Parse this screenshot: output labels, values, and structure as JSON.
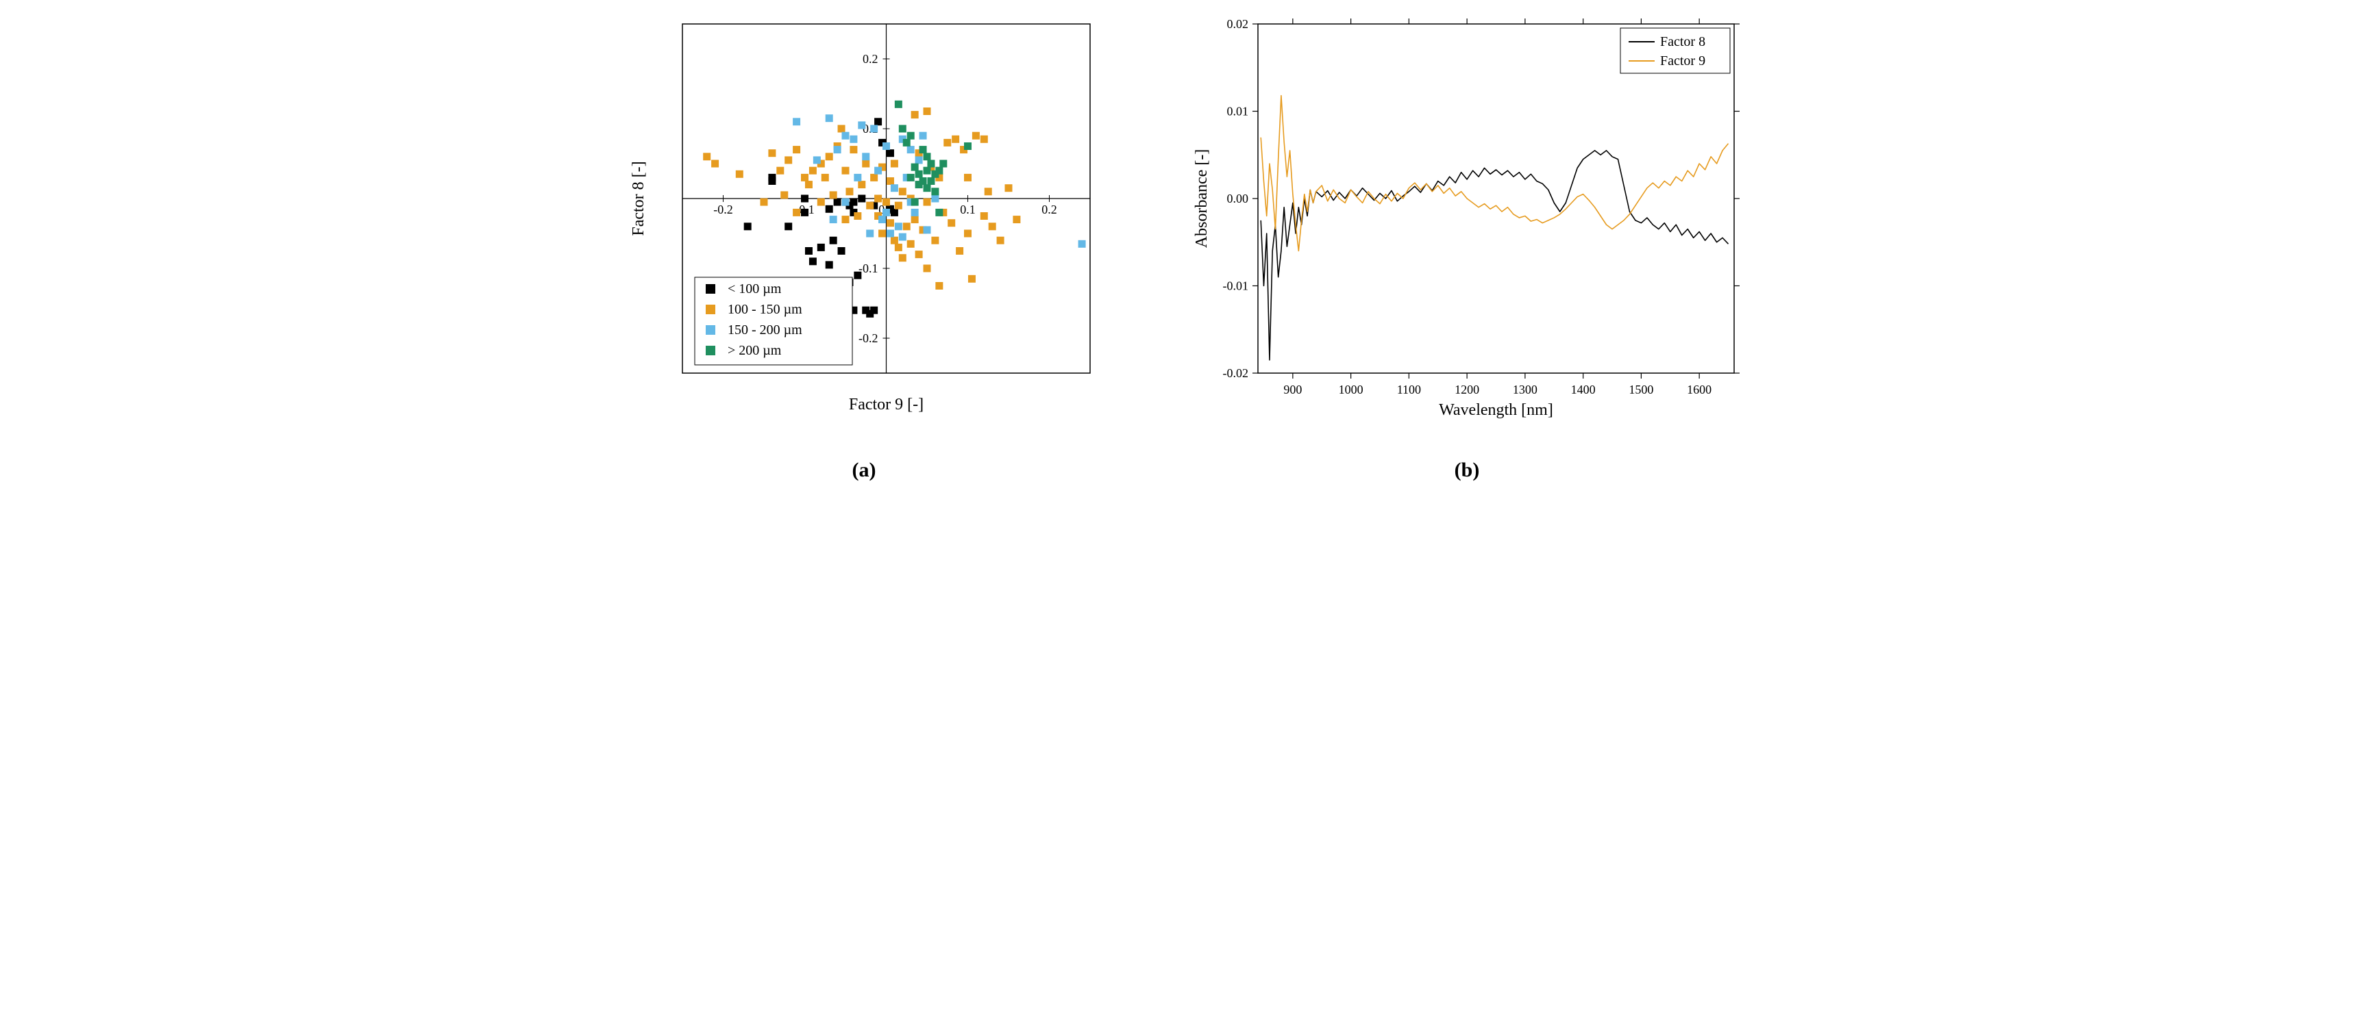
{
  "scatter": {
    "type": "scatter",
    "xlabel": "Factor 9 [-]",
    "ylabel": "Factor 8 [-]",
    "label_fontsize": 24,
    "tick_fontsize": 18,
    "font_family": "serif",
    "background_color": "#ffffff",
    "border_color": "#000000",
    "xlim": [
      -0.25,
      0.25
    ],
    "ylim": [
      -0.25,
      0.25
    ],
    "xticks": [
      -0.2,
      -0.1,
      0.0,
      0.1,
      0.2
    ],
    "yticks": [
      -0.2,
      -0.1,
      0.0,
      0.1,
      0.2
    ],
    "marker_size": 11,
    "panel_label": "(a)",
    "legend": {
      "position": "lower-left",
      "font_size": 20,
      "items": [
        {
          "label": "< 100 µm",
          "color": "#000000"
        },
        {
          "label": "100 - 150 µm",
          "color": "#e69b1f"
        },
        {
          "label": "150 - 200 µm",
          "color": "#63b8e6"
        },
        {
          "label": "> 200 µm",
          "color": "#1f8f5f"
        }
      ]
    },
    "series": [
      {
        "name": "< 100 µm",
        "color": "#000000",
        "points": [
          [
            -0.17,
            -0.04
          ],
          [
            -0.14,
            0.03
          ],
          [
            -0.14,
            0.025
          ],
          [
            -0.12,
            -0.04
          ],
          [
            -0.1,
            0.0
          ],
          [
            -0.1,
            -0.02
          ],
          [
            -0.095,
            -0.075
          ],
          [
            -0.09,
            -0.09
          ],
          [
            -0.08,
            -0.07
          ],
          [
            -0.07,
            -0.095
          ],
          [
            -0.07,
            -0.015
          ],
          [
            -0.065,
            -0.06
          ],
          [
            -0.06,
            -0.005
          ],
          [
            -0.06,
            -0.13
          ],
          [
            -0.055,
            -0.075
          ],
          [
            -0.05,
            -0.005
          ],
          [
            -0.045,
            -0.12
          ],
          [
            -0.04,
            -0.16
          ],
          [
            -0.04,
            -0.005
          ],
          [
            -0.035,
            -0.11
          ],
          [
            -0.03,
            0.0
          ],
          [
            -0.025,
            -0.16
          ],
          [
            -0.02,
            -0.165
          ],
          [
            -0.015,
            -0.16
          ],
          [
            -0.015,
            -0.01
          ],
          [
            -0.01,
            0.11
          ],
          [
            -0.005,
            0.08
          ],
          [
            0.005,
            -0.015
          ],
          [
            0.01,
            -0.02
          ],
          [
            0.005,
            0.065
          ],
          [
            -0.04,
            -0.02
          ],
          [
            -0.045,
            -0.01
          ]
        ]
      },
      {
        "name": "100 - 150 µm",
        "color": "#e69b1f",
        "points": [
          [
            -0.22,
            0.06
          ],
          [
            -0.21,
            0.05
          ],
          [
            -0.18,
            0.035
          ],
          [
            -0.15,
            -0.005
          ],
          [
            -0.14,
            0.065
          ],
          [
            -0.13,
            0.04
          ],
          [
            -0.125,
            0.005
          ],
          [
            -0.12,
            0.055
          ],
          [
            -0.11,
            0.07
          ],
          [
            -0.11,
            -0.02
          ],
          [
            -0.1,
            0.03
          ],
          [
            -0.095,
            0.02
          ],
          [
            -0.09,
            0.04
          ],
          [
            -0.08,
            0.05
          ],
          [
            -0.08,
            -0.005
          ],
          [
            -0.075,
            0.03
          ],
          [
            -0.07,
            0.06
          ],
          [
            -0.065,
            0.005
          ],
          [
            -0.06,
            0.075
          ],
          [
            -0.055,
            0.1
          ],
          [
            -0.05,
            0.04
          ],
          [
            -0.05,
            -0.03
          ],
          [
            -0.045,
            0.01
          ],
          [
            -0.04,
            0.07
          ],
          [
            -0.035,
            -0.025
          ],
          [
            -0.03,
            0.02
          ],
          [
            -0.025,
            0.05
          ],
          [
            -0.02,
            -0.01
          ],
          [
            -0.015,
            0.03
          ],
          [
            -0.01,
            0.0
          ],
          [
            -0.01,
            -0.025
          ],
          [
            -0.005,
            0.045
          ],
          [
            -0.005,
            -0.05
          ],
          [
            0.0,
            -0.005
          ],
          [
            0.005,
            0.025
          ],
          [
            0.005,
            -0.035
          ],
          [
            0.01,
            -0.06
          ],
          [
            0.01,
            0.05
          ],
          [
            0.015,
            -0.01
          ],
          [
            0.015,
            -0.07
          ],
          [
            0.02,
            0.01
          ],
          [
            0.02,
            -0.085
          ],
          [
            0.025,
            -0.04
          ],
          [
            0.03,
            0.0
          ],
          [
            0.03,
            -0.065
          ],
          [
            0.035,
            0.12
          ],
          [
            0.035,
            -0.03
          ],
          [
            0.04,
            -0.08
          ],
          [
            0.04,
            0.065
          ],
          [
            0.045,
            -0.045
          ],
          [
            0.05,
            0.125
          ],
          [
            0.05,
            -0.005
          ],
          [
            0.05,
            -0.1
          ],
          [
            0.055,
            0.045
          ],
          [
            0.06,
            -0.06
          ],
          [
            0.065,
            0.03
          ],
          [
            0.065,
            -0.125
          ],
          [
            0.07,
            -0.02
          ],
          [
            0.075,
            0.08
          ],
          [
            0.08,
            -0.035
          ],
          [
            0.085,
            0.085
          ],
          [
            0.09,
            -0.075
          ],
          [
            0.095,
            0.07
          ],
          [
            0.1,
            -0.05
          ],
          [
            0.1,
            0.03
          ],
          [
            0.105,
            -0.115
          ],
          [
            0.11,
            0.09
          ],
          [
            0.12,
            -0.025
          ],
          [
            0.12,
            0.085
          ],
          [
            0.125,
            0.01
          ],
          [
            0.13,
            -0.04
          ],
          [
            0.14,
            -0.06
          ],
          [
            0.15,
            0.015
          ],
          [
            0.16,
            -0.03
          ]
        ]
      },
      {
        "name": "150 - 200 µm",
        "color": "#63b8e6",
        "points": [
          [
            -0.11,
            0.11
          ],
          [
            -0.085,
            0.055
          ],
          [
            -0.07,
            0.115
          ],
          [
            -0.065,
            -0.03
          ],
          [
            -0.06,
            0.07
          ],
          [
            -0.05,
            0.09
          ],
          [
            -0.05,
            -0.005
          ],
          [
            -0.04,
            0.085
          ],
          [
            -0.035,
            0.03
          ],
          [
            -0.03,
            0.105
          ],
          [
            -0.025,
            0.06
          ],
          [
            -0.02,
            -0.05
          ],
          [
            -0.015,
            0.1
          ],
          [
            -0.01,
            0.04
          ],
          [
            -0.005,
            -0.03
          ],
          [
            0.0,
            -0.02
          ],
          [
            0.0,
            0.075
          ],
          [
            0.005,
            -0.05
          ],
          [
            0.01,
            0.015
          ],
          [
            0.015,
            -0.04
          ],
          [
            0.02,
            0.085
          ],
          [
            0.02,
            -0.055
          ],
          [
            0.025,
            0.03
          ],
          [
            0.03,
            -0.005
          ],
          [
            0.03,
            0.07
          ],
          [
            0.035,
            -0.02
          ],
          [
            0.04,
            0.055
          ],
          [
            0.045,
            0.09
          ],
          [
            0.05,
            -0.045
          ],
          [
            0.06,
            0.0
          ],
          [
            0.24,
            -0.065
          ]
        ]
      },
      {
        "name": "> 200 µm",
        "color": "#1f8f5f",
        "points": [
          [
            0.015,
            0.135
          ],
          [
            0.02,
            0.1
          ],
          [
            0.025,
            0.08
          ],
          [
            0.03,
            0.03
          ],
          [
            0.03,
            0.09
          ],
          [
            0.035,
            0.045
          ],
          [
            0.035,
            -0.005
          ],
          [
            0.04,
            0.02
          ],
          [
            0.04,
            0.035
          ],
          [
            0.045,
            0.07
          ],
          [
            0.045,
            0.025
          ],
          [
            0.05,
            0.04
          ],
          [
            0.05,
            0.015
          ],
          [
            0.05,
            0.06
          ],
          [
            0.055,
            0.025
          ],
          [
            0.055,
            0.05
          ],
          [
            0.06,
            0.035
          ],
          [
            0.06,
            0.01
          ],
          [
            0.065,
            0.04
          ],
          [
            0.065,
            -0.02
          ],
          [
            0.07,
            0.05
          ],
          [
            0.1,
            0.075
          ]
        ]
      }
    ]
  },
  "linechart": {
    "type": "line",
    "xlabel": "Wavelength [nm]",
    "ylabel": "Absorbance [-]",
    "label_fontsize": 24,
    "tick_fontsize": 18,
    "font_family": "serif",
    "background_color": "#ffffff",
    "border_color": "#000000",
    "xlim": [
      840,
      1660
    ],
    "ylim": [
      -0.02,
      0.02
    ],
    "xticks": [
      900,
      1000,
      1100,
      1200,
      1300,
      1400,
      1500,
      1600
    ],
    "yticks": [
      -0.02,
      -0.01,
      0.0,
      0.01,
      0.02
    ],
    "line_width": 1.6,
    "panel_label": "(b)",
    "legend": {
      "position": "upper-right",
      "font_size": 20,
      "items": [
        {
          "label": "Factor 8",
          "color": "#000000"
        },
        {
          "label": "Factor 9",
          "color": "#e69b1f"
        }
      ]
    },
    "series": [
      {
        "name": "Factor 8",
        "color": "#000000",
        "x": [
          845,
          850,
          855,
          860,
          865,
          870,
          875,
          880,
          885,
          890,
          895,
          900,
          905,
          910,
          915,
          920,
          925,
          930,
          935,
          940,
          950,
          960,
          970,
          980,
          990,
          1000,
          1010,
          1020,
          1030,
          1040,
          1050,
          1060,
          1070,
          1080,
          1090,
          1100,
          1110,
          1120,
          1130,
          1140,
          1150,
          1160,
          1170,
          1180,
          1190,
          1200,
          1210,
          1220,
          1230,
          1240,
          1250,
          1260,
          1270,
          1280,
          1290,
          1300,
          1310,
          1320,
          1330,
          1340,
          1350,
          1360,
          1370,
          1380,
          1390,
          1400,
          1410,
          1420,
          1430,
          1440,
          1450,
          1460,
          1470,
          1480,
          1490,
          1500,
          1510,
          1520,
          1530,
          1540,
          1550,
          1560,
          1570,
          1580,
          1590,
          1600,
          1610,
          1620,
          1630,
          1640,
          1650
        ],
        "y": [
          -0.0025,
          -0.01,
          -0.004,
          -0.0185,
          -0.006,
          -0.003,
          -0.009,
          -0.006,
          -0.001,
          -0.0055,
          -0.003,
          -0.0005,
          -0.004,
          -0.001,
          -0.003,
          0.0,
          -0.002,
          0.001,
          -0.0005,
          0.0008,
          0.0002,
          0.0009,
          -0.0002,
          0.0007,
          0.0,
          0.001,
          0.0003,
          0.0012,
          0.0005,
          -0.0002,
          0.0006,
          0.0,
          0.0009,
          -0.0003,
          0.0003,
          0.0008,
          0.0014,
          0.0007,
          0.0017,
          0.0009,
          0.002,
          0.0015,
          0.0025,
          0.0018,
          0.003,
          0.0022,
          0.0032,
          0.0025,
          0.0035,
          0.0028,
          0.0033,
          0.0027,
          0.0032,
          0.0025,
          0.003,
          0.0022,
          0.0028,
          0.002,
          0.0017,
          0.001,
          -0.0005,
          -0.0015,
          -0.0005,
          0.0015,
          0.0035,
          0.0045,
          0.005,
          0.0055,
          0.005,
          0.0055,
          0.0048,
          0.0045,
          0.0015,
          -0.0015,
          -0.0025,
          -0.0028,
          -0.0022,
          -0.003,
          -0.0035,
          -0.0028,
          -0.0038,
          -0.003,
          -0.0042,
          -0.0035,
          -0.0045,
          -0.0038,
          -0.0048,
          -0.004,
          -0.005,
          -0.0045,
          -0.0052
        ]
      },
      {
        "name": "Factor 9",
        "color": "#e69b1f",
        "x": [
          845,
          850,
          855,
          860,
          865,
          870,
          875,
          880,
          885,
          890,
          895,
          900,
          905,
          910,
          915,
          920,
          925,
          930,
          935,
          940,
          950,
          960,
          970,
          980,
          990,
          1000,
          1010,
          1020,
          1030,
          1040,
          1050,
          1060,
          1070,
          1080,
          1090,
          1100,
          1110,
          1120,
          1130,
          1140,
          1150,
          1160,
          1170,
          1180,
          1190,
          1200,
          1210,
          1220,
          1230,
          1240,
          1250,
          1260,
          1270,
          1280,
          1290,
          1300,
          1310,
          1320,
          1330,
          1340,
          1350,
          1360,
          1370,
          1380,
          1390,
          1400,
          1410,
          1420,
          1430,
          1440,
          1450,
          1460,
          1470,
          1480,
          1490,
          1500,
          1510,
          1520,
          1530,
          1540,
          1550,
          1560,
          1570,
          1580,
          1590,
          1600,
          1610,
          1620,
          1630,
          1640,
          1650
        ],
        "y": [
          0.007,
          0.002,
          -0.002,
          0.004,
          0.001,
          -0.0035,
          0.0045,
          0.0118,
          0.0065,
          0.0025,
          0.0055,
          0.0005,
          -0.003,
          -0.006,
          -0.0025,
          0.0005,
          -0.0015,
          0.001,
          -0.0005,
          0.0008,
          0.0015,
          -0.0003,
          0.001,
          0.0,
          -0.0005,
          0.001,
          0.0002,
          -0.0005,
          0.0008,
          0.0,
          -0.0006,
          0.0005,
          -0.0003,
          0.0006,
          0.0,
          0.0012,
          0.0018,
          0.001,
          0.0017,
          0.0008,
          0.0015,
          0.0006,
          0.0012,
          0.0003,
          0.0008,
          0.0,
          -0.0005,
          -0.001,
          -0.0006,
          -0.0012,
          -0.0008,
          -0.0015,
          -0.001,
          -0.0018,
          -0.0022,
          -0.002,
          -0.0026,
          -0.0024,
          -0.0028,
          -0.0025,
          -0.0022,
          -0.0018,
          -0.0012,
          -0.0005,
          0.0002,
          0.0005,
          -0.0002,
          -0.001,
          -0.002,
          -0.003,
          -0.0035,
          -0.003,
          -0.0025,
          -0.0018,
          -0.0008,
          0.0002,
          0.0012,
          0.0018,
          0.0012,
          0.002,
          0.0015,
          0.0025,
          0.002,
          0.0032,
          0.0025,
          0.004,
          0.0033,
          0.0048,
          0.004,
          0.0055,
          0.0063
        ]
      }
    ]
  }
}
